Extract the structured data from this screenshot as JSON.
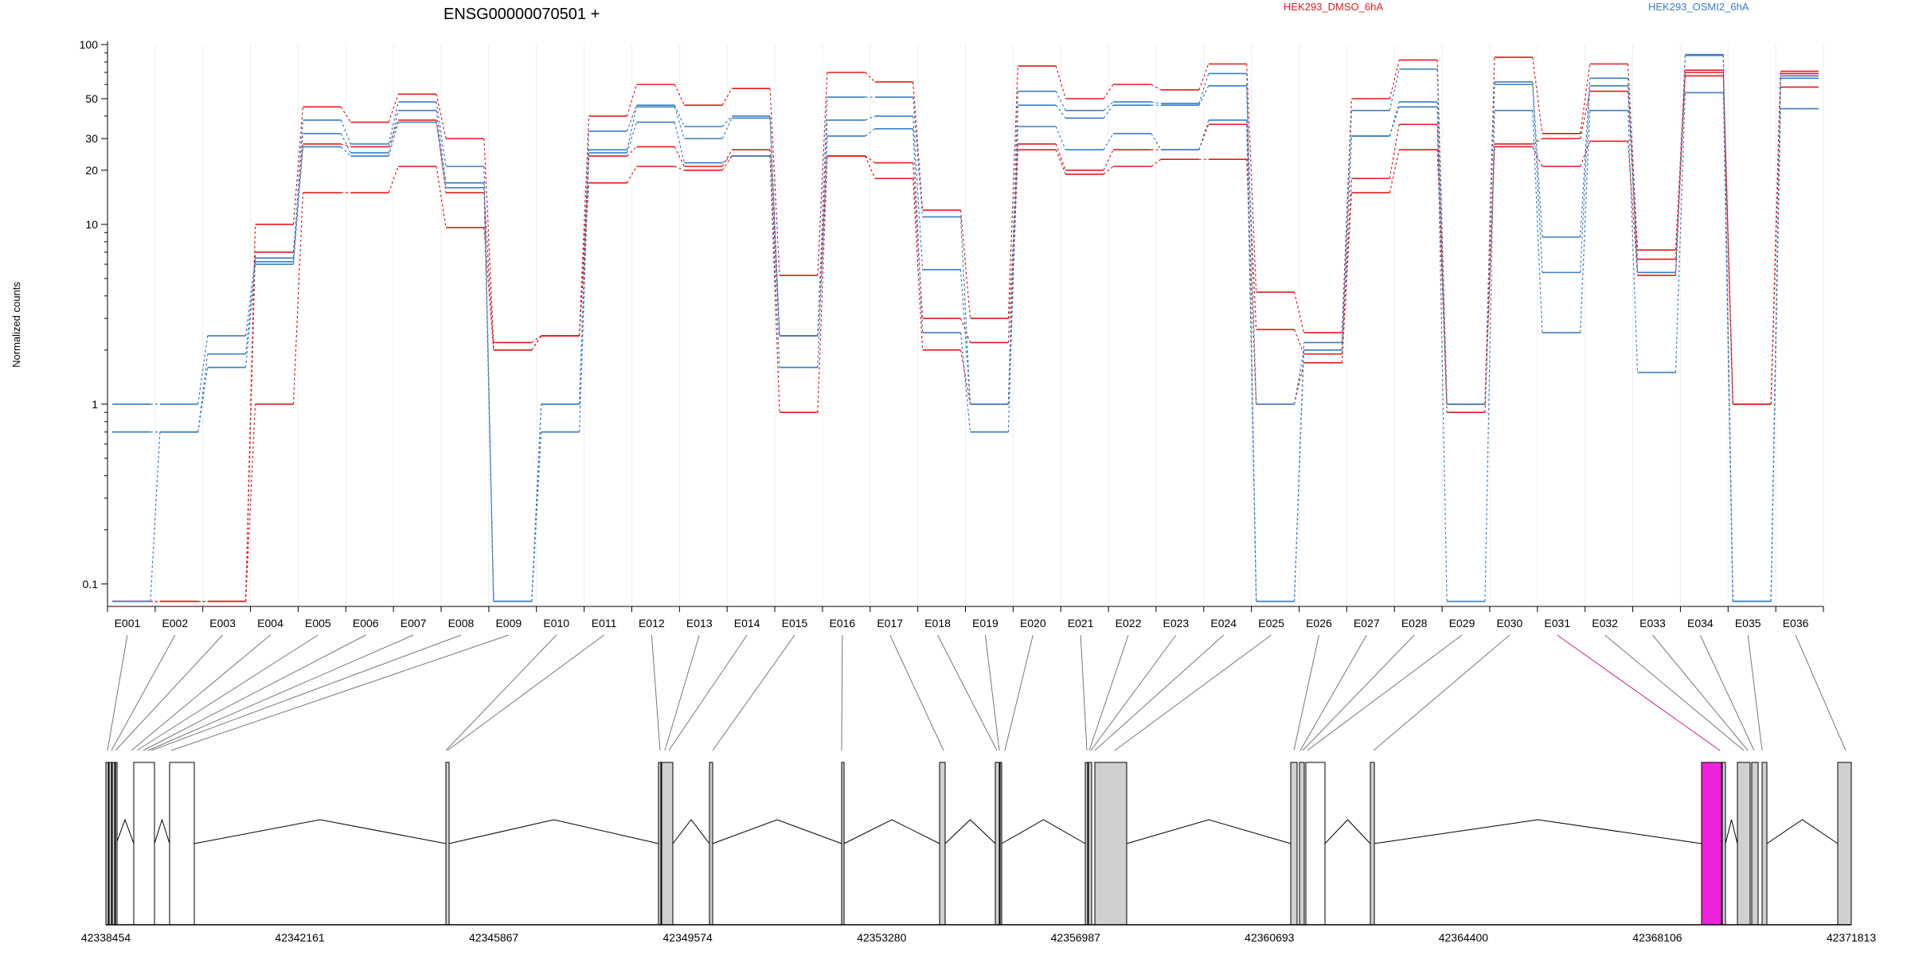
{
  "chart_data": {
    "type": "line",
    "title": "ENSG00000070501 +",
    "xlabel": "",
    "ylabel": "Normalized counts",
    "y_scale": "log",
    "ylim": [
      0.075,
      100
    ],
    "y_ticks": [
      0.1,
      1,
      10,
      20,
      30,
      50,
      100
    ],
    "y_tick_labels": [
      "0.1",
      "1",
      "10",
      "20",
      "30",
      "50",
      "100"
    ],
    "grid": true,
    "legend": "top",
    "categories": [
      "E001",
      "E002",
      "E003",
      "E004",
      "E005",
      "E006",
      "E007",
      "E008",
      "E009",
      "E010",
      "E011",
      "E012",
      "E013",
      "E014",
      "E015",
      "E016",
      "E017",
      "E018",
      "E019",
      "E020",
      "E021",
      "E022",
      "E023",
      "E024",
      "E025",
      "E026",
      "E027",
      "E028",
      "E029",
      "E030",
      "E031",
      "E032",
      "E033",
      "E034",
      "E035",
      "E036"
    ],
    "groups": [
      {
        "name": "HEK293_DMSO_6hA",
        "color": "#e31a1c"
      },
      {
        "name": "HEK293_OSMI2_6hA",
        "color": "#3a7dc0"
      }
    ],
    "series": [
      {
        "group": "HEK293_DMSO_6hA",
        "values": [
          0.08,
          0.08,
          0.08,
          10,
          45,
          37,
          53,
          30,
          2.2,
          2.4,
          40,
          60,
          46,
          57,
          5.2,
          70,
          62,
          12,
          3,
          76,
          50,
          60,
          56,
          78,
          4.2,
          2.5,
          50,
          82,
          1.0,
          85,
          32,
          78,
          7.2,
          72,
          1.0,
          71
        ]
      },
      {
        "group": "HEK293_DMSO_6hA",
        "values": [
          0.08,
          0.08,
          0.08,
          7,
          28,
          27,
          38,
          15,
          2.0,
          2.4,
          24,
          27,
          21,
          26,
          2.4,
          24,
          22,
          3,
          2.2,
          28,
          20,
          26,
          26,
          36,
          2.6,
          1.9,
          18,
          36,
          0.9,
          28,
          30,
          55,
          6.4,
          67,
          1.0,
          69
        ]
      },
      {
        "group": "HEK293_DMSO_6hA",
        "values": [
          0.08,
          0.08,
          0.08,
          1.0,
          15,
          15,
          21,
          9.6,
          2.0,
          2.4,
          17,
          21,
          20,
          24,
          0.9,
          24,
          18,
          2,
          1.0,
          26,
          19,
          21,
          23,
          23,
          1.0,
          1.7,
          15,
          26,
          1.0,
          27,
          21,
          29,
          5.2,
          70,
          1.0,
          58
        ]
      },
      {
        "group": "HEK293_OSMI2_6hA",
        "values": [
          1.0,
          1.0,
          2.4,
          6.5,
          38,
          28,
          48,
          21,
          0.08,
          1.0,
          33,
          46,
          35,
          40,
          2.4,
          51,
          51,
          11,
          1.0,
          55,
          43,
          48,
          47,
          69,
          0.08,
          2.2,
          43,
          73,
          1.0,
          62,
          8.5,
          65,
          5.4,
          88,
          0.08,
          67
        ]
      },
      {
        "group": "HEK293_OSMI2_6hA",
        "values": [
          0.7,
          0.7,
          1.9,
          6.2,
          32,
          25,
          43,
          17,
          0.08,
          1.0,
          26,
          45,
          30,
          39,
          2.4,
          38,
          40,
          5.6,
          1.0,
          46,
          39,
          46,
          46,
          59,
          1.0,
          2.0,
          31,
          48,
          1.0,
          60,
          5.4,
          59,
          5.4,
          87,
          0.08,
          65
        ]
      },
      {
        "group": "HEK293_OSMI2_6hA",
        "values": [
          0.08,
          0.7,
          1.6,
          6.0,
          27,
          24,
          37,
          16,
          0.08,
          0.7,
          25,
          37,
          22,
          24,
          1.6,
          31,
          34,
          2.5,
          0.7,
          35,
          26,
          32,
          26,
          38,
          0.08,
          2.0,
          31,
          45,
          0.08,
          43,
          2.5,
          43,
          1.5,
          54,
          0.08,
          44
        ]
      }
    ],
    "exon_section_labels": {
      "coordinates": [
        "42338454",
        "42342161",
        "42345867",
        "42349574",
        "42353280",
        "42356987",
        "42360693",
        "42364400",
        "42368106",
        "42371813"
      ]
    }
  }
}
